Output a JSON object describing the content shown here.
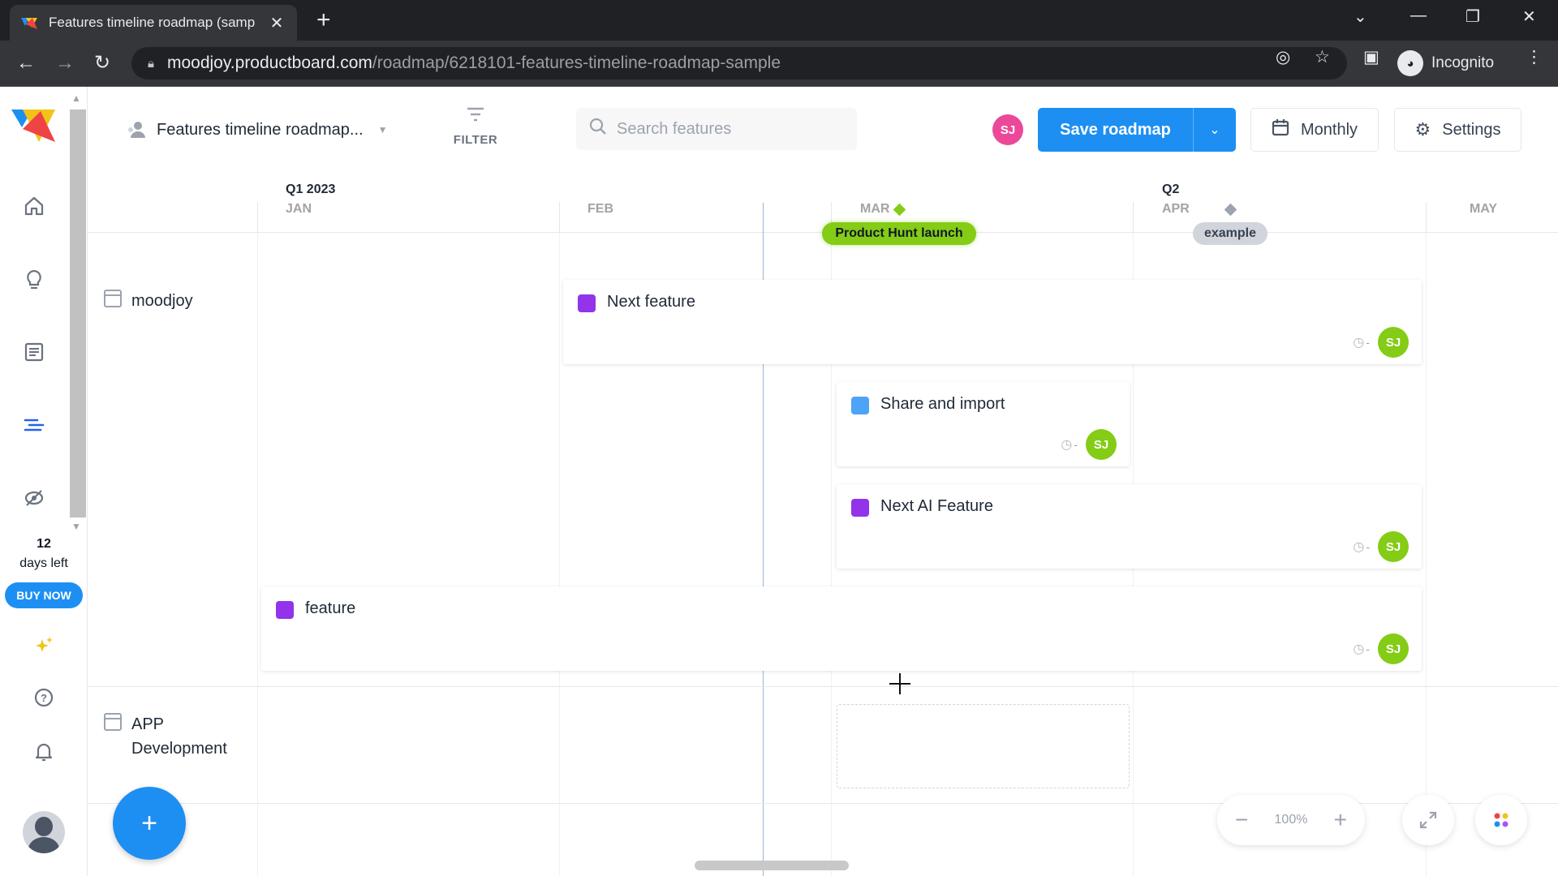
{
  "browser": {
    "tab_title": "Features timeline roadmap (samp",
    "tab_close": "✕",
    "new_tab": "+",
    "url_host": "moodjoy.productboard.com",
    "url_path": "/roadmap/6218101-features-timeline-roadmap-sample",
    "incognito_label": "Incognito"
  },
  "sidebar": {
    "trial_days": "12",
    "trial_text": "days left",
    "buy_now": "BUY NOW"
  },
  "toolbar": {
    "roadmap_title": "Features timeline roadmap...",
    "filter_label": "FILTER",
    "search_placeholder": "Search features",
    "user_initials": "SJ",
    "save_label": "Save roadmap",
    "monthly_label": "Monthly",
    "settings_label": "Settings"
  },
  "timeline": {
    "quarters": [
      "Q1 2023",
      "Q2"
    ],
    "months": [
      "JAN",
      "FEB",
      "MAR",
      "APR",
      "MAY"
    ],
    "milestones": [
      {
        "label": "Product Hunt launch",
        "color": "#84cc16"
      },
      {
        "label": "example",
        "color": "#d1d5db"
      }
    ]
  },
  "groups": [
    {
      "name": "moodjoy"
    },
    {
      "name": "APP Development"
    }
  ],
  "features": [
    {
      "name": "Next feature",
      "color": "#9333ea",
      "time": "-",
      "owner": "SJ"
    },
    {
      "name": "Share and import",
      "color": "#4da3f5",
      "time": "-",
      "owner": "SJ"
    },
    {
      "name": "Next AI Feature",
      "color": "#9333ea",
      "time": "-",
      "owner": "SJ"
    },
    {
      "name": "feature",
      "color": "#9333ea",
      "time": "-",
      "owner": "SJ"
    }
  ],
  "zoom": {
    "value": "100%"
  }
}
